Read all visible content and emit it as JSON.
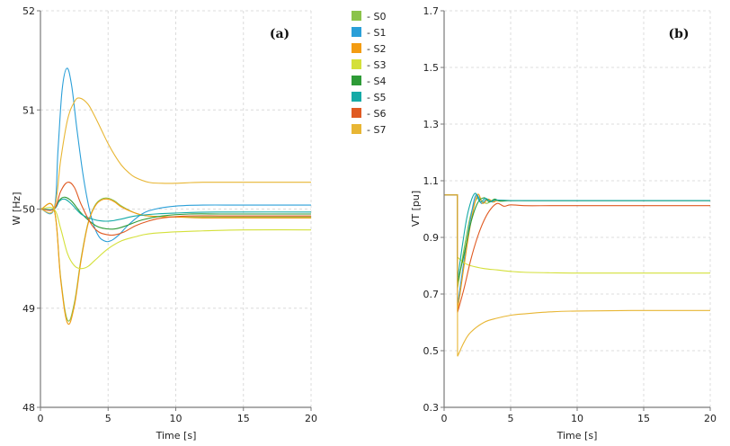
{
  "chart_data": [
    {
      "type": "line",
      "panel_label": "(a)",
      "title": "",
      "xlabel": "Time [s]",
      "ylabel": "W [Hz]",
      "xlim": [
        0,
        20
      ],
      "ylim": [
        48,
        52
      ],
      "xticks": [
        "0",
        "5",
        "10",
        "15",
        "20"
      ],
      "yticks": [
        "48",
        "49",
        "50",
        "51",
        "52"
      ],
      "grid": true,
      "series": [
        {
          "name": "- S0",
          "color": "#8bc34a",
          "x": [
            0,
            1,
            1.5,
            2,
            2.5,
            3,
            3.5,
            4,
            4.5,
            5,
            5.5,
            6,
            7,
            8,
            10,
            12,
            15,
            20
          ],
          "values": [
            50,
            50,
            49.3,
            48.88,
            49.05,
            49.5,
            49.85,
            50.03,
            50.1,
            50.11,
            50.08,
            50.03,
            49.96,
            49.93,
            49.92,
            49.92,
            49.92,
            49.92
          ]
        },
        {
          "name": "- S1",
          "color": "#2a9fd8",
          "x": [
            0,
            1,
            1.3,
            1.6,
            1.95,
            2.3,
            2.7,
            3.2,
            3.7,
            4.2,
            4.7,
            5.2,
            5.8,
            6.5,
            7.5,
            8.5,
            10,
            12,
            15,
            20
          ],
          "values": [
            50,
            50,
            50.6,
            51.2,
            51.42,
            51.25,
            50.8,
            50.3,
            49.95,
            49.75,
            49.68,
            49.68,
            49.74,
            49.84,
            49.95,
            50.0,
            50.03,
            50.04,
            50.04,
            50.04
          ]
        },
        {
          "name": "- S2",
          "color": "#f39c12",
          "x": [
            0,
            1,
            1.5,
            2,
            2.5,
            3,
            3.5,
            4,
            4.5,
            5,
            5.5,
            6,
            7,
            8,
            10,
            12,
            15,
            20
          ],
          "values": [
            50,
            50,
            49.28,
            48.85,
            49.02,
            49.48,
            49.84,
            50.02,
            50.09,
            50.1,
            50.07,
            50.02,
            49.96,
            49.93,
            49.92,
            49.91,
            49.91,
            49.91
          ]
        },
        {
          "name": "- S3",
          "color": "#d4e03a",
          "x": [
            0,
            1,
            1.5,
            2,
            2.5,
            3,
            3.5,
            4,
            5,
            6,
            7,
            8,
            10,
            12,
            15,
            20
          ],
          "values": [
            50,
            50,
            49.8,
            49.55,
            49.43,
            49.4,
            49.42,
            49.48,
            49.6,
            49.68,
            49.72,
            49.75,
            49.77,
            49.78,
            49.79,
            49.79
          ]
        },
        {
          "name": "- S4",
          "color": "#2e9b37",
          "x": [
            0,
            1,
            1.4,
            1.8,
            2.3,
            3,
            3.8,
            4.5,
            5.5,
            6.5,
            7.5,
            9,
            11,
            14,
            20
          ],
          "values": [
            50,
            50,
            50.09,
            50.12,
            50.08,
            49.96,
            49.86,
            49.81,
            49.8,
            49.84,
            49.89,
            49.93,
            49.95,
            49.95,
            49.95
          ]
        },
        {
          "name": "- S5",
          "color": "#15aaa6",
          "x": [
            0,
            1,
            1.4,
            1.8,
            2.3,
            3,
            3.8,
            4.5,
            5.2,
            6,
            7,
            8.5,
            10,
            13,
            20
          ],
          "values": [
            50,
            50,
            50.08,
            50.1,
            50.05,
            49.95,
            49.9,
            49.88,
            49.88,
            49.9,
            49.93,
            49.95,
            49.96,
            49.97,
            49.97
          ]
        },
        {
          "name": "- S6",
          "color": "#e05a22",
          "x": [
            0,
            1,
            1.5,
            2,
            2.5,
            3,
            3.7,
            4.3,
            5,
            5.5,
            6.2,
            7,
            8,
            9,
            11,
            14,
            20
          ],
          "values": [
            50,
            50,
            50.18,
            50.27,
            50.22,
            50.05,
            49.86,
            49.77,
            49.74,
            49.74,
            49.77,
            49.83,
            49.88,
            49.91,
            49.93,
            49.93,
            49.93
          ]
        },
        {
          "name": "- S7",
          "color": "#e8b634",
          "x": [
            0,
            1,
            1.5,
            2,
            2.5,
            2.9,
            3.5,
            4,
            4.5,
            5,
            5.5,
            6,
            6.5,
            7,
            8,
            9,
            10,
            12,
            15,
            20
          ],
          "values": [
            50,
            50,
            50.5,
            50.9,
            51.08,
            51.12,
            51.06,
            50.94,
            50.8,
            50.66,
            50.54,
            50.44,
            50.37,
            50.32,
            50.27,
            50.26,
            50.26,
            50.27,
            50.27,
            50.27
          ]
        }
      ],
      "legend": {
        "placement": "top-right-outside",
        "entries": [
          "- S0",
          "- S1",
          "- S2",
          "- S3",
          "- S4",
          "- S5",
          "- S6",
          "- S7"
        ]
      }
    },
    {
      "type": "line",
      "panel_label": "(b)",
      "title": "",
      "xlabel": "Time [s]",
      "ylabel": "VT [pu]",
      "xlim": [
        0,
        20
      ],
      "ylim": [
        0.3,
        1.7
      ],
      "xticks": [
        "0",
        "5",
        "10",
        "15",
        "20"
      ],
      "yticks": [
        "0.3",
        "0.5",
        "0.7",
        "0.9",
        "1.1",
        "1.3",
        "1.5",
        "1.7"
      ],
      "grid": true,
      "series": [
        {
          "name": "- S0",
          "color": "#8bc34a",
          "x": [
            0,
            1,
            1.01,
            1.5,
            2,
            2.5,
            2.8,
            3.2,
            3.6,
            4,
            5,
            7,
            10,
            20
          ],
          "values": [
            1.05,
            1.05,
            0.72,
            0.86,
            0.98,
            1.04,
            1.03,
            1.02,
            1.03,
            1.03,
            1.03,
            1.03,
            1.03,
            1.03
          ]
        },
        {
          "name": "- S1",
          "color": "#2a9fd8",
          "x": [
            0,
            1,
            1.01,
            1.5,
            2,
            2.4,
            2.8,
            3.2,
            3.6,
            4,
            5,
            7,
            10,
            20
          ],
          "values": [
            1.05,
            1.05,
            0.66,
            0.82,
            0.97,
            1.05,
            1.02,
            1.035,
            1.025,
            1.03,
            1.03,
            1.03,
            1.03,
            1.03
          ]
        },
        {
          "name": "- S2",
          "color": "#f39c12",
          "x": [
            0,
            1,
            1.01,
            1.5,
            2,
            2.5,
            2.9,
            3.3,
            3.7,
            4,
            5,
            7,
            10,
            20
          ],
          "values": [
            1.05,
            1.05,
            0.64,
            0.8,
            0.95,
            1.05,
            1.02,
            1.035,
            1.025,
            1.03,
            1.03,
            1.03,
            1.03,
            1.03
          ]
        },
        {
          "name": "- S3",
          "color": "#d4e03a",
          "x": [
            0,
            1,
            1.01,
            1.5,
            2,
            3,
            4,
            5,
            6,
            8,
            10,
            15,
            20
          ],
          "values": [
            1.05,
            1.05,
            0.83,
            0.81,
            0.8,
            0.79,
            0.785,
            0.78,
            0.777,
            0.775,
            0.774,
            0.774,
            0.774
          ]
        },
        {
          "name": "- S4",
          "color": "#2e9b37",
          "x": [
            0,
            1,
            1.01,
            1.5,
            2,
            2.5,
            3,
            3.4,
            3.8,
            4.2,
            5,
            7,
            10,
            20
          ],
          "values": [
            1.05,
            1.05,
            0.74,
            0.84,
            0.95,
            1.02,
            1.04,
            1.025,
            1.035,
            1.028,
            1.03,
            1.03,
            1.03,
            1.03
          ]
        },
        {
          "name": "- S5",
          "color": "#15aaa6",
          "x": [
            0,
            1,
            1.01,
            1.4,
            1.8,
            2.3,
            2.7,
            3.1,
            3.5,
            3.9,
            5,
            7,
            10,
            20
          ],
          "values": [
            1.05,
            1.05,
            0.75,
            0.88,
            0.99,
            1.055,
            1.025,
            1.038,
            1.027,
            1.032,
            1.03,
            1.03,
            1.03,
            1.03
          ]
        },
        {
          "name": "- S6",
          "color": "#e05a22",
          "x": [
            0,
            1,
            1.01,
            1.5,
            2,
            2.5,
            3,
            3.5,
            4,
            4.5,
            5,
            6,
            8,
            10,
            20
          ],
          "values": [
            1.05,
            1.05,
            0.635,
            0.72,
            0.82,
            0.9,
            0.96,
            1.0,
            1.02,
            1.01,
            1.015,
            1.012,
            1.012,
            1.012,
            1.012
          ]
        },
        {
          "name": "- S7",
          "color": "#e8b634",
          "x": [
            0,
            1,
            1.01,
            1.5,
            2,
            3,
            4,
            5,
            6,
            8,
            10,
            15,
            20
          ],
          "values": [
            1.05,
            1.05,
            0.48,
            0.53,
            0.565,
            0.6,
            0.615,
            0.625,
            0.63,
            0.637,
            0.64,
            0.642,
            0.642
          ]
        }
      ]
    }
  ]
}
